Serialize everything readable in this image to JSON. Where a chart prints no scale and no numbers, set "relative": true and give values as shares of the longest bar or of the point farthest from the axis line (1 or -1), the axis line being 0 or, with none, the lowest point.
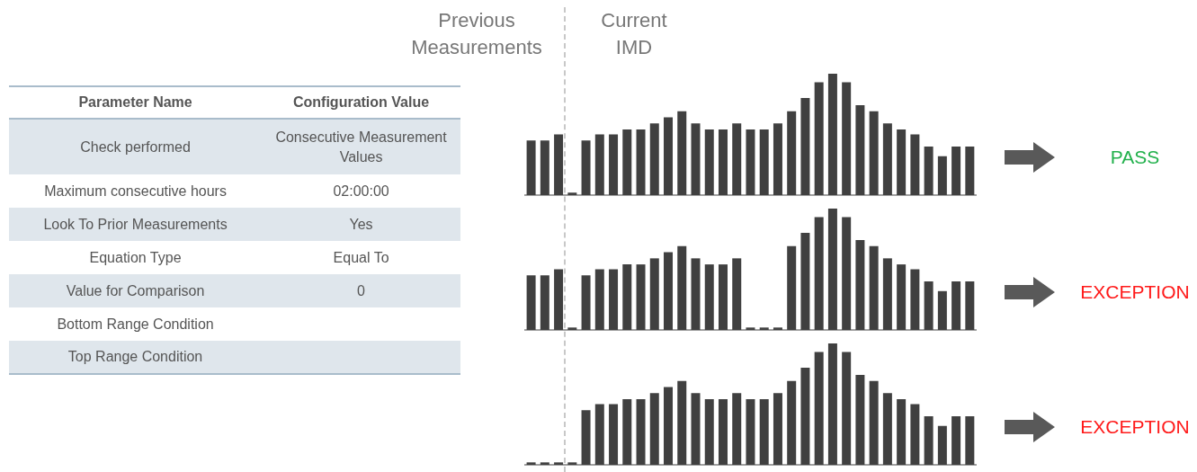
{
  "chart_data": [
    {
      "type": "other",
      "annotations": [
        "Parameter Name",
        "Configuration Value"
      ],
      "categories": [
        "Check performed",
        "Maximum consecutive hours",
        "Look To Prior Measurements",
        "Equation Type",
        "Value for Comparison",
        "Bottom Range Condition",
        "Top Range Condition"
      ],
      "value_labels": [
        "Consecutive Measurement Values",
        "02:00:00",
        "Yes",
        "Equal To",
        "0",
        null,
        null
      ]
    },
    {
      "type": "bar",
      "annotations": [
        "Previous Measurements",
        "Current IMD",
        "PASS"
      ],
      "relative": true,
      "categories": [
        null,
        null,
        null,
        null,
        null,
        null,
        null,
        null,
        null,
        null,
        null,
        null,
        null,
        null,
        null,
        null,
        null,
        null,
        null,
        null,
        null,
        null,
        null,
        null,
        null,
        null,
        null,
        null,
        null,
        null,
        null,
        null,
        null
      ],
      "color": "#404040",
      "values": [
        0.45,
        0.45,
        0.5,
        0.02,
        0.45,
        0.5,
        0.5,
        0.54,
        0.54,
        0.59,
        0.64,
        0.69,
        0.59,
        0.54,
        0.54,
        0.59,
        0.54,
        0.54,
        0.59,
        0.69,
        0.8,
        0.93,
        1,
        0.93,
        0.74,
        0.69,
        0.59,
        0.54,
        0.5,
        0.4,
        0.32,
        0.4,
        0.4
      ]
    },
    {
      "type": "bar",
      "annotations": [
        "EXCEPTION"
      ],
      "relative": true,
      "categories": [
        null,
        null,
        null,
        null,
        null,
        null,
        null,
        null,
        null,
        null,
        null,
        null,
        null,
        null,
        null,
        null,
        null,
        null,
        null,
        null,
        null,
        null,
        null,
        null,
        null,
        null,
        null,
        null,
        null,
        null,
        null,
        null,
        null
      ],
      "color": "#404040",
      "values": [
        0.45,
        0.45,
        0.5,
        0.02,
        0.45,
        0.5,
        0.5,
        0.54,
        0.54,
        0.59,
        0.64,
        0.69,
        0.59,
        0.54,
        0.54,
        0.59,
        0.02,
        0.02,
        0.02,
        0.69,
        0.8,
        0.93,
        1,
        0.93,
        0.74,
        0.69,
        0.59,
        0.54,
        0.5,
        0.4,
        0.32,
        0.4,
        0.4
      ]
    },
    {
      "type": "bar",
      "annotations": [
        "EXCEPTION"
      ],
      "relative": true,
      "categories": [
        null,
        null,
        null,
        null,
        null,
        null,
        null,
        null,
        null,
        null,
        null,
        null,
        null,
        null,
        null,
        null,
        null,
        null,
        null,
        null,
        null,
        null,
        null,
        null,
        null,
        null,
        null,
        null,
        null,
        null,
        null,
        null,
        null
      ],
      "color": "#404040",
      "values": [
        0.02,
        0.02,
        0.02,
        0.02,
        0.45,
        0.5,
        0.5,
        0.54,
        0.54,
        0.59,
        0.64,
        0.69,
        0.59,
        0.54,
        0.54,
        0.59,
        0.54,
        0.54,
        0.59,
        0.69,
        0.8,
        0.93,
        1,
        0.93,
        0.74,
        0.69,
        0.59,
        0.54,
        0.5,
        0.4,
        0.32,
        0.4,
        0.4
      ]
    }
  ]
}
